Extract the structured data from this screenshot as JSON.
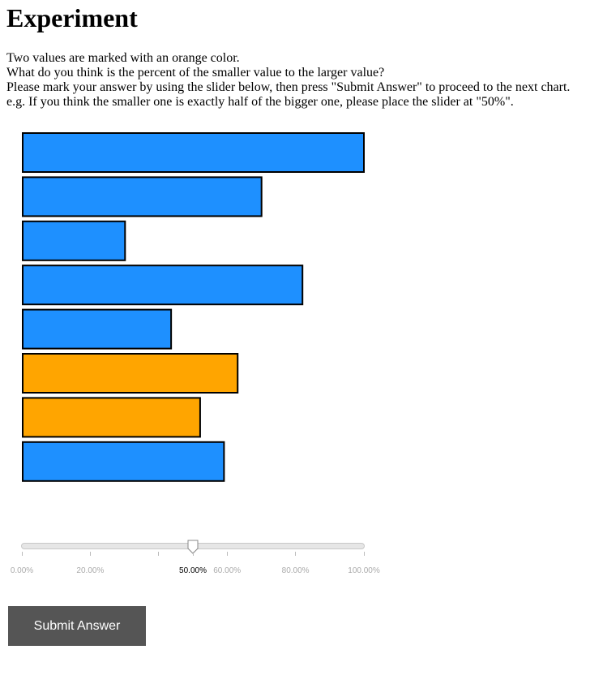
{
  "page": {
    "title": "Experiment",
    "instructions": [
      "Two values are marked with an orange color.",
      "What do you think is the percent of the smaller value to the larger value?",
      "Please mark your answer by using the slider below, then press \"Submit Answer\" to proceed to the next chart.",
      "e.g. If you think the smaller one is exactly half of the bigger one, please place the slider at \"50%\"."
    ]
  },
  "chart_data": {
    "type": "bar",
    "orientation": "horizontal",
    "values": [
      100,
      70,
      30,
      82,
      43.5,
      63,
      52,
      59
    ],
    "highlighted": [
      false,
      false,
      false,
      false,
      false,
      true,
      true,
      false
    ],
    "colors": {
      "default": "#1e90ff",
      "highlight": "#ffa500",
      "stroke": "#000000"
    },
    "title": "",
    "xlabel": "",
    "ylabel": ""
  },
  "slider": {
    "value": 50,
    "min": 0,
    "max": 100,
    "ticks": [
      {
        "value": 0,
        "label": "0.00%"
      },
      {
        "value": 20,
        "label": "20.00%"
      },
      {
        "value": 40,
        "label": ""
      },
      {
        "value": 50,
        "label": "50.00%",
        "current": true
      },
      {
        "value": 60,
        "label": "60.00%"
      },
      {
        "value": 80,
        "label": "80.00%"
      },
      {
        "value": 100,
        "label": "100.00%"
      }
    ]
  },
  "submit": {
    "label": "Submit Answer"
  }
}
